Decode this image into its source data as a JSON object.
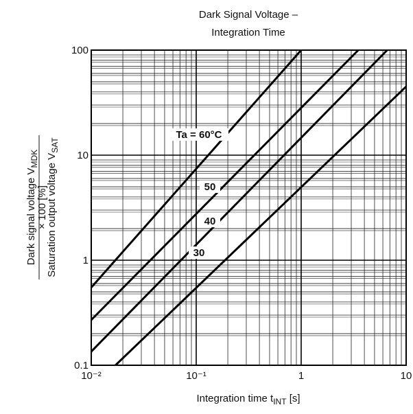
{
  "chart_data": {
    "type": "line",
    "title": [
      "Dark Signal Voltage –",
      "Integration Time"
    ],
    "x_label": [
      "Integration time t",
      "INT",
      " [s]"
    ],
    "y_label": {
      "numerator": [
        "Dark signal voltage V",
        "MDK"
      ],
      "factor": "× 100 [%]",
      "denominator": [
        "Saturation output voltage V",
        "SAT"
      ]
    },
    "log_x": true,
    "log_y": true,
    "grid": true,
    "minor_grid": true,
    "xlim": [
      0.01,
      10
    ],
    "ylim": [
      0.1,
      100
    ],
    "xticks": [
      {
        "value": 0.01,
        "label": "10⁻²"
      },
      {
        "value": 0.1,
        "label": "10⁻¹"
      },
      1,
      10
    ],
    "yticks": [
      0.1,
      1,
      10,
      100
    ],
    "series": [
      {
        "name": "Ta = 60°C",
        "color": "#000000",
        "x": [
          0.01,
          1
        ],
        "values": [
          0.55,
          100
        ]
      },
      {
        "name": "50",
        "color": "#000000",
        "x": [
          0.01,
          3.5
        ],
        "values": [
          0.27,
          100
        ]
      },
      {
        "name": "40",
        "color": "#000000",
        "x": [
          0.01,
          6.6
        ],
        "values": [
          0.135,
          100
        ]
      },
      {
        "name": "30",
        "color": "#000000",
        "x": [
          0.017,
          10
        ],
        "values": [
          0.1,
          45
        ]
      }
    ]
  }
}
